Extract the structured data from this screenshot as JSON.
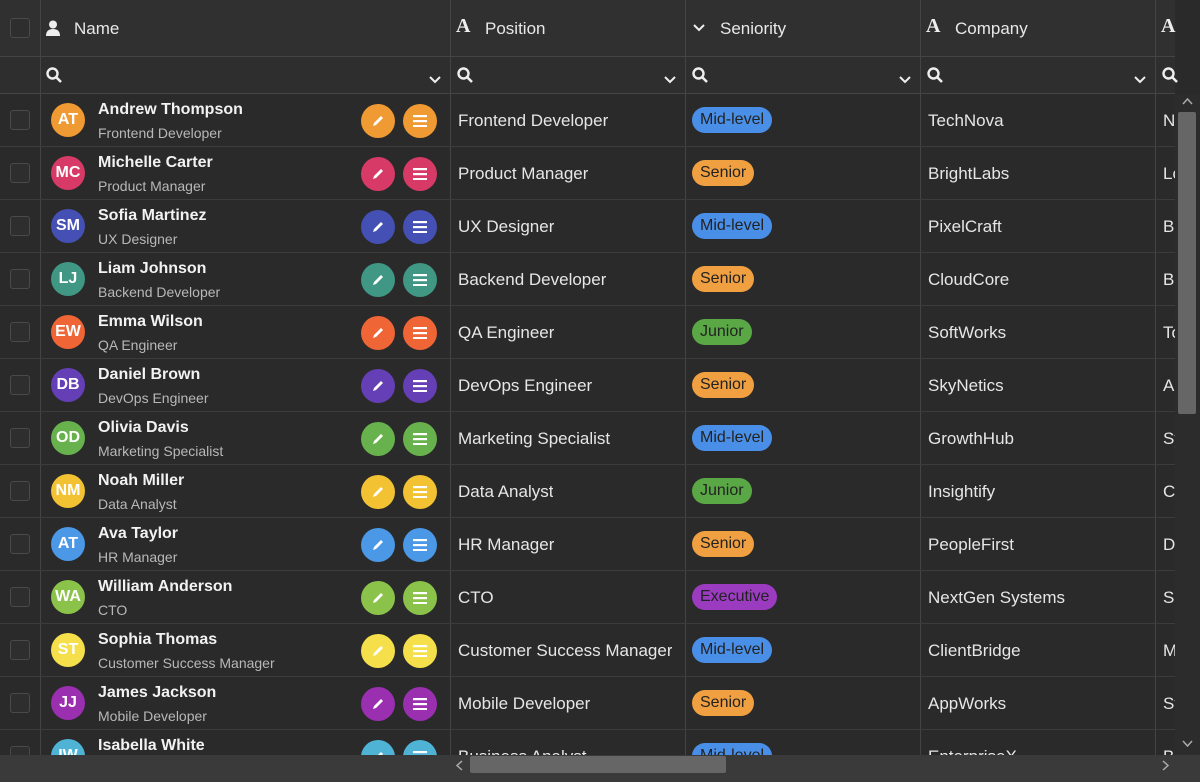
{
  "header": {
    "columns": [
      "Name",
      "Position",
      "Seniority",
      "Company"
    ]
  },
  "rows": [
    {
      "initials": "AT",
      "name": "Andrew Thompson",
      "subtitle": "Frontend Developer",
      "position": "Frontend Developer",
      "seniority": "Mid-level",
      "company": "TechNova",
      "next": "N",
      "color": "#ef9a32",
      "seniority_color": "#4a8fe7"
    },
    {
      "initials": "MC",
      "name": "Michelle Carter",
      "subtitle": "Product Manager",
      "position": "Product Manager",
      "seniority": "Senior",
      "company": "BrightLabs",
      "next": "Lo",
      "color": "#d83a68",
      "seniority_color": "#f0a040"
    },
    {
      "initials": "SM",
      "name": "Sofia Martinez",
      "subtitle": "UX Designer",
      "position": "UX Designer",
      "seniority": "Mid-level",
      "company": "PixelCraft",
      "next": "Ba",
      "color": "#4450b4",
      "seniority_color": "#4a8fe7"
    },
    {
      "initials": "LJ",
      "name": "Liam Johnson",
      "subtitle": "Backend Developer",
      "position": "Backend Developer",
      "seniority": "Senior",
      "company": "CloudCore",
      "next": "Bo",
      "color": "#3f9784",
      "seniority_color": "#f0a040"
    },
    {
      "initials": "EW",
      "name": "Emma Wilson",
      "subtitle": "QA Engineer",
      "position": "QA Engineer",
      "seniority": "Junior",
      "company": "SoftWorks",
      "next": "To",
      "color": "#ef6536",
      "seniority_color": "#5aa845"
    },
    {
      "initials": "DB",
      "name": "Daniel Brown",
      "subtitle": "DevOps Engineer",
      "position": "DevOps Engineer",
      "seniority": "Senior",
      "company": "SkyNetics",
      "next": "Ar",
      "color": "#653fb5",
      "seniority_color": "#f0a040"
    },
    {
      "initials": "OD",
      "name": "Olivia Davis",
      "subtitle": "Marketing Specialist",
      "position": "Marketing Specialist",
      "seniority": "Mid-level",
      "company": "GrowthHub",
      "next": "Sy",
      "color": "#68b24e",
      "seniority_color": "#4a8fe7"
    },
    {
      "initials": "NM",
      "name": "Noah Miller",
      "subtitle": "Data Analyst",
      "position": "Data Analyst",
      "seniority": "Junior",
      "company": "Insightify",
      "next": "Cl",
      "color": "#f2c232",
      "seniority_color": "#5aa845"
    },
    {
      "initials": "AT",
      "name": "Ava Taylor",
      "subtitle": "HR Manager",
      "position": "HR Manager",
      "seniority": "Senior",
      "company": "PeopleFirst",
      "next": "Du",
      "color": "#4a98e6",
      "seniority_color": "#f0a040"
    },
    {
      "initials": "WA",
      "name": "William Anderson",
      "subtitle": "CTO",
      "position": "CTO",
      "seniority": "Executive",
      "company": "NextGen Systems",
      "next": "Sa",
      "color": "#8bc34a",
      "seniority_color": "#9b3cc0"
    },
    {
      "initials": "ST",
      "name": "Sophia Thomas",
      "subtitle": "Customer Success Manager",
      "position": "Customer Success Manager",
      "seniority": "Mid-level",
      "company": "ClientBridge",
      "next": "M",
      "color": "#f5e04c",
      "seniority_color": "#4a8fe7"
    },
    {
      "initials": "JJ",
      "name": "James Jackson",
      "subtitle": "Mobile Developer",
      "position": "Mobile Developer",
      "seniority": "Senior",
      "company": "AppWorks",
      "next": "St",
      "color": "#9a2fb0",
      "seniority_color": "#f0a040"
    },
    {
      "initials": "IW",
      "name": "Isabella White",
      "position": "Business Analyst",
      "seniority": "Mid-level",
      "company": "EnterpriseX",
      "next": "B",
      "color": "#4fb3d6",
      "seniority_color": "#4a8fe7"
    }
  ]
}
